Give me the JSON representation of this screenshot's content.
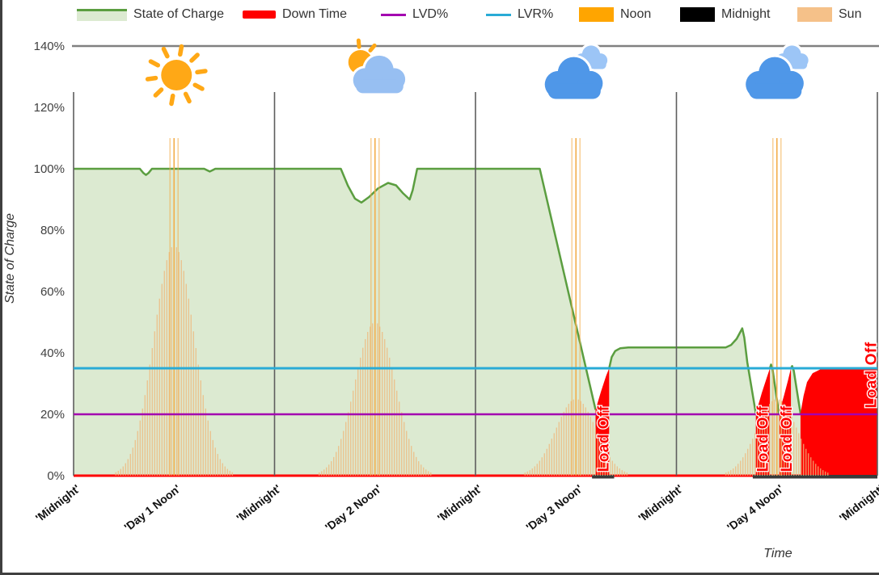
{
  "page": {
    "background": "#FFFFFF",
    "frame_color": "#3F3F3F"
  },
  "legend": {
    "items": [
      {
        "label": "State of Charge",
        "swatch": "area-green"
      },
      {
        "label": "Down Time",
        "swatch": "thick-red"
      },
      {
        "label": "LVD%",
        "swatch": "line-purple"
      },
      {
        "label": "LVR%",
        "swatch": "line-blue"
      },
      {
        "label": "Noon",
        "swatch": "box-orange"
      },
      {
        "label": "Midnight",
        "swatch": "box-black"
      },
      {
        "label": "Sun",
        "swatch": "box-tan"
      }
    ]
  },
  "colors": {
    "soc_line": "#5B9E40",
    "soc_fill": "#DCEAD1",
    "downtime": "#FF0000",
    "lvd": "#A303B0",
    "lvr": "#29ABD6",
    "noon_box": "#FFA500",
    "noon_marker": "#F3AE4B",
    "midnight_box": "#000000",
    "midnight_marker": "#5E5E5E",
    "sun_box": "#F5C189",
    "sun_marker": "#EFB97E",
    "plot_top_border": "#808080",
    "axis_title_text": "#333333",
    "y_tick_text": "#404040",
    "x_tick_text": "#111111",
    "dark_base": "#3A3A3A",
    "sun_icon": "#FFA816",
    "cloud_dark": "#4F97E8",
    "cloud_light": "#97BFF2",
    "cloud_small": "#9CC5F6"
  },
  "chart_data": {
    "type": "area",
    "title": "",
    "xlabel": "Time",
    "ylabel": "State of Charge",
    "x_unit": "half-days (0 = starting Midnight, 1 = Day 1 Noon ... 8 = final Midnight)",
    "xlim": [
      0,
      8
    ],
    "ylim_pct": [
      0,
      140
    ],
    "grid": false,
    "legend_position": "top",
    "y_ticks": [
      {
        "pct": 0,
        "label": "0%"
      },
      {
        "pct": 20,
        "label": "20%"
      },
      {
        "pct": 40,
        "label": "40%"
      },
      {
        "pct": 60,
        "label": "60%"
      },
      {
        "pct": 80,
        "label": "80%"
      },
      {
        "pct": 100,
        "label": "100%"
      },
      {
        "pct": 120,
        "label": "120%"
      },
      {
        "pct": 140,
        "label": "140%"
      }
    ],
    "x_ticks": [
      {
        "t": 0,
        "label": "'Midnight'"
      },
      {
        "t": 1,
        "label": "'Day 1 Noon'"
      },
      {
        "t": 2,
        "label": "'Midnight'"
      },
      {
        "t": 3,
        "label": "'Day 2 Noon'"
      },
      {
        "t": 4,
        "label": "'Midnight'"
      },
      {
        "t": 5,
        "label": "'Day 3 Noon'"
      },
      {
        "t": 6,
        "label": "'Midnight'"
      },
      {
        "t": 7,
        "label": "'Day 4 Noon'"
      },
      {
        "t": 8,
        "label": "'Midnight'"
      }
    ],
    "lvd_pct": 20,
    "lvr_pct": 35,
    "soc_segments": [
      [
        [
          0,
          100
        ],
        [
          0.66,
          100
        ],
        [
          0.695,
          98.6
        ],
        [
          0.72,
          98
        ],
        [
          0.745,
          98.6
        ],
        [
          0.78,
          100
        ],
        [
          1.3,
          100
        ],
        [
          1.33,
          99.5
        ],
        [
          1.355,
          99.1
        ],
        [
          1.38,
          99.5
        ],
        [
          1.41,
          100
        ],
        [
          2.66,
          100
        ],
        [
          2.73,
          94.5
        ],
        [
          2.8,
          90.3
        ],
        [
          2.865,
          89
        ],
        [
          2.94,
          90.8
        ],
        [
          3.03,
          93.6
        ],
        [
          3.13,
          95.4
        ],
        [
          3.21,
          94.6
        ],
        [
          3.28,
          92
        ],
        [
          3.345,
          90
        ],
        [
          3.375,
          93
        ],
        [
          3.42,
          100
        ],
        [
          4.64,
          100
        ],
        [
          5.195,
          21.5
        ]
      ],
      [
        [
          5.33,
          35
        ],
        [
          5.355,
          38.6
        ],
        [
          5.39,
          40.6
        ],
        [
          5.44,
          41.5
        ],
        [
          5.52,
          41.8
        ],
        [
          6.49,
          41.8
        ],
        [
          6.545,
          42.6
        ],
        [
          6.6,
          44.6
        ],
        [
          6.655,
          48
        ],
        [
          6.675,
          45
        ],
        [
          6.705,
          37
        ],
        [
          6.79,
          20.3
        ]
      ],
      [
        [
          6.93,
          35
        ],
        [
          6.942,
          36.2
        ],
        [
          6.958,
          34.5
        ],
        [
          7.02,
          20.3
        ]
      ],
      [
        [
          7.14,
          35
        ],
        [
          7.152,
          35.7
        ],
        [
          7.168,
          34.2
        ],
        [
          7.235,
          20.3
        ]
      ]
    ],
    "downtime_regions": [
      [
        [
          5.195,
          21.5
        ],
        [
          5.25,
          27.5
        ],
        [
          5.3,
          32.5
        ],
        [
          5.33,
          35
        ],
        [
          5.33,
          0
        ],
        [
          5.195,
          0
        ]
      ],
      [
        [
          6.79,
          20.3
        ],
        [
          6.85,
          27
        ],
        [
          6.9,
          32
        ],
        [
          6.93,
          35
        ],
        [
          6.93,
          0
        ],
        [
          6.79,
          0
        ]
      ],
      [
        [
          7.02,
          20.3
        ],
        [
          7.07,
          26
        ],
        [
          7.11,
          31
        ],
        [
          7.14,
          35
        ],
        [
          7.14,
          0
        ],
        [
          7.02,
          0
        ]
      ],
      [
        [
          7.235,
          20.3
        ],
        [
          7.265,
          26
        ],
        [
          7.3,
          30.5
        ],
        [
          7.355,
          33.4
        ],
        [
          7.43,
          34.6
        ],
        [
          8,
          34.6
        ],
        [
          8,
          0
        ],
        [
          7.235,
          0
        ]
      ]
    ],
    "downtime_base_segments": [
      [
        5.16,
        5.38
      ],
      [
        6.76,
        8
      ]
    ],
    "sun_bells": [
      {
        "center": 1,
        "peak_pct": 75
      },
      {
        "center": 3,
        "peak_pct": 50
      },
      {
        "center": 5,
        "peak_pct": 25
      },
      {
        "center": 7,
        "peak_pct": 25
      }
    ],
    "noon_markers": [
      1,
      3,
      5,
      7
    ],
    "noon_marker_top_pct": 110,
    "midnight_markers": [
      0,
      2,
      4,
      6,
      8
    ],
    "midnight_marker_top_pct": 125,
    "weather_icons": [
      {
        "t": 1,
        "icon": "sunny"
      },
      {
        "t": 3,
        "icon": "partly-cloudy"
      },
      {
        "t": 5,
        "icon": "cloudy"
      },
      {
        "t": 7,
        "icon": "cloudy"
      }
    ],
    "load_off_label": "Load Off",
    "load_off_positions": [
      {
        "t": 5.268,
        "bottom_pct": 1.2
      },
      {
        "t": 6.852,
        "bottom_pct": 1.2
      },
      {
        "t": 7.09,
        "bottom_pct": 1.2
      },
      {
        "t": 7.932,
        "bottom_pct": 22
      }
    ]
  }
}
